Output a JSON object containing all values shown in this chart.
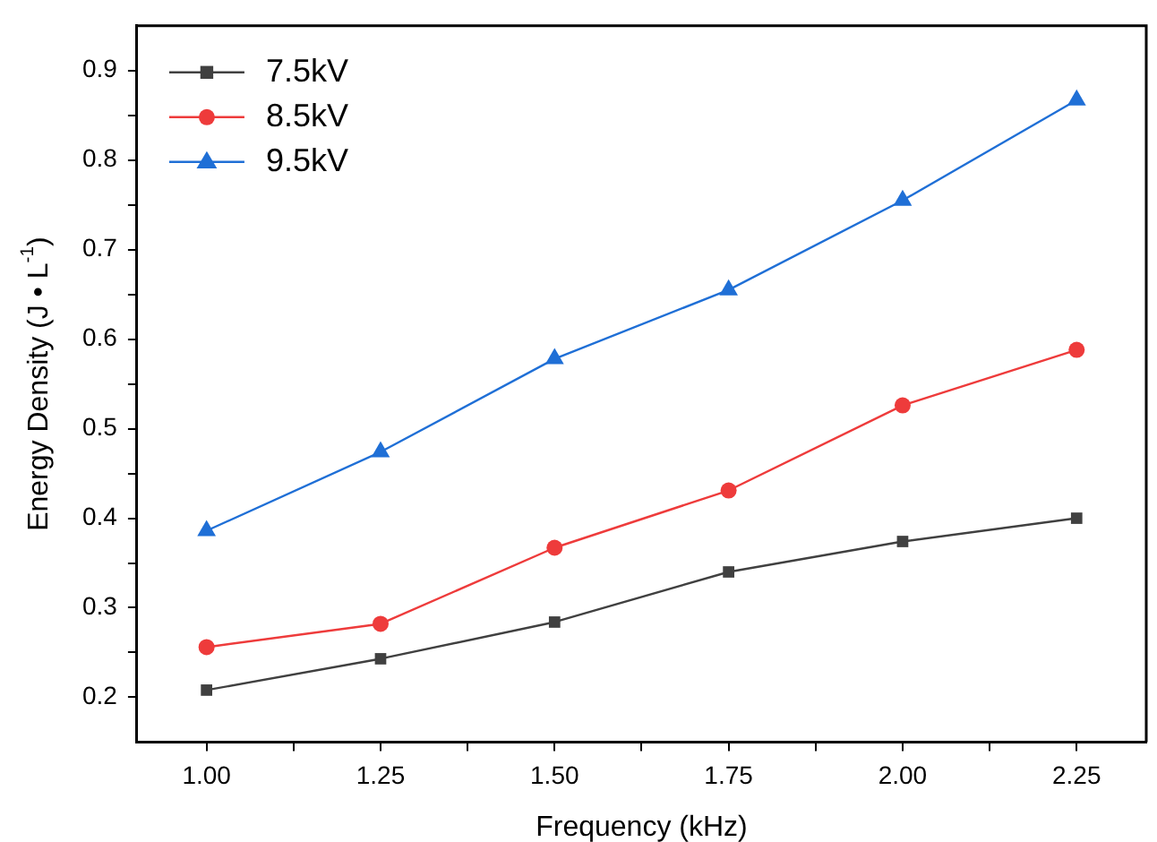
{
  "chart_data": {
    "type": "line",
    "xlabel": "Frequency (kHz)",
    "ylabel": "Energy Density (J • L$^{-1}$)",
    "x": [
      1.0,
      1.25,
      1.5,
      1.75,
      2.0,
      2.25
    ],
    "series": [
      {
        "name": "7.5kV",
        "color": "#404040",
        "marker": "square",
        "values": [
          0.208,
          0.243,
          0.284,
          0.34,
          0.374,
          0.4
        ]
      },
      {
        "name": "8.5kV",
        "color": "#ee3b3b",
        "marker": "circle",
        "values": [
          0.256,
          0.282,
          0.367,
          0.431,
          0.526,
          0.588
        ]
      },
      {
        "name": "9.5kV",
        "color": "#1f6fd6",
        "marker": "triangle",
        "values": [
          0.386,
          0.474,
          0.578,
          0.655,
          0.755,
          0.867
        ]
      }
    ],
    "xlim": [
      0.9,
      2.35
    ],
    "xticks": [
      {
        "value": 1.0,
        "label": "1.00"
      },
      {
        "value": 1.125,
        "label": null
      },
      {
        "value": 1.25,
        "label": "1.25"
      },
      {
        "value": 1.375,
        "label": null
      },
      {
        "value": 1.5,
        "label": "1.50"
      },
      {
        "value": 1.625,
        "label": null
      },
      {
        "value": 1.75,
        "label": "1.75"
      },
      {
        "value": 1.875,
        "label": null
      },
      {
        "value": 2.0,
        "label": "2.00"
      },
      {
        "value": 2.125,
        "label": null
      },
      {
        "value": 2.25,
        "label": "2.25"
      }
    ],
    "ylim": [
      0.15,
      0.95
    ],
    "yticks": [
      0.2,
      {
        "value": 0.25,
        "label": null
      },
      0.3,
      {
        "value": 0.35,
        "label": null
      },
      0.4,
      {
        "value": 0.45,
        "label": null
      },
      0.5,
      {
        "value": 0.55,
        "label": null
      },
      0.6,
      {
        "value": 0.65,
        "label": null
      },
      0.7,
      {
        "value": 0.75,
        "label": null
      },
      0.8,
      {
        "value": 0.85,
        "label": null
      },
      0.9
    ],
    "grid": false,
    "legend": "top left",
    "line_style": "solid"
  }
}
